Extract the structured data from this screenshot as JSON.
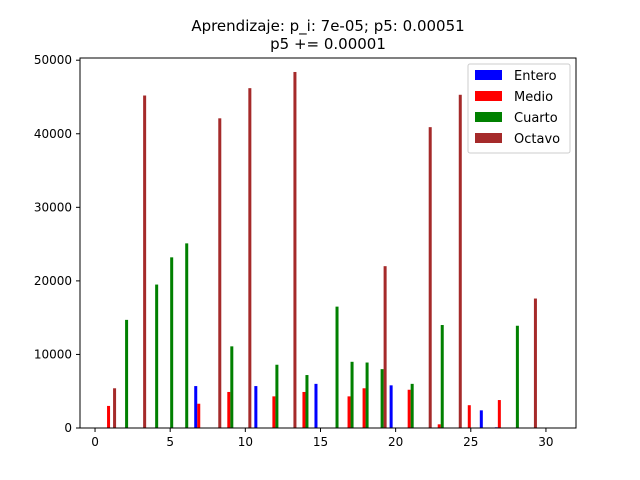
{
  "chart_data": {
    "type": "bar",
    "title": "Aprendizaje: p_i: 7e-05; p5: 0.00051",
    "subtitle": "p5 += 0.00001",
    "xlim": [
      -1,
      32
    ],
    "ylim": [
      0,
      50300
    ],
    "x_ticks": [
      0,
      5,
      10,
      15,
      20,
      25,
      30
    ],
    "y_ticks": [
      0,
      10000,
      20000,
      30000,
      40000,
      50000
    ],
    "grid": false,
    "legend_position": "top-right",
    "series": [
      {
        "name": "Entero",
        "color": "#0000ff",
        "offset": -0.3,
        "points": [
          [
            7,
            5700
          ],
          [
            11,
            5700
          ],
          [
            15,
            6000
          ],
          [
            20,
            5800
          ],
          [
            26,
            2400
          ],
          [
            27,
            100
          ]
        ]
      },
      {
        "name": "Medio",
        "color": "#ff0000",
        "offset": -0.1,
        "points": [
          [
            1,
            3000
          ],
          [
            7,
            3300
          ],
          [
            9,
            4900
          ],
          [
            12,
            4300
          ],
          [
            14,
            4900
          ],
          [
            17,
            4300
          ],
          [
            18,
            5400
          ],
          [
            21,
            5200
          ],
          [
            23,
            500
          ],
          [
            25,
            3100
          ],
          [
            27,
            3800
          ]
        ]
      },
      {
        "name": "Cuarto",
        "color": "#008000",
        "offset": 0.1,
        "points": [
          [
            2,
            14700
          ],
          [
            4,
            19500
          ],
          [
            5,
            23200
          ],
          [
            6,
            25100
          ],
          [
            9,
            11100
          ],
          [
            12,
            8600
          ],
          [
            14,
            7200
          ],
          [
            16,
            16500
          ],
          [
            17,
            9000
          ],
          [
            18,
            8900
          ],
          [
            19,
            8000
          ],
          [
            21,
            6000
          ],
          [
            23,
            14000
          ],
          [
            28,
            13900
          ]
        ]
      },
      {
        "name": "Octavo",
        "color": "#a52a2a",
        "offset": 0.3,
        "points": [
          [
            1,
            5400
          ],
          [
            3,
            45200
          ],
          [
            8,
            42100
          ],
          [
            10,
            46200
          ],
          [
            13,
            48400
          ],
          [
            19,
            22000
          ],
          [
            22,
            40900
          ],
          [
            24,
            45300
          ],
          [
            29,
            17600
          ]
        ]
      }
    ]
  }
}
